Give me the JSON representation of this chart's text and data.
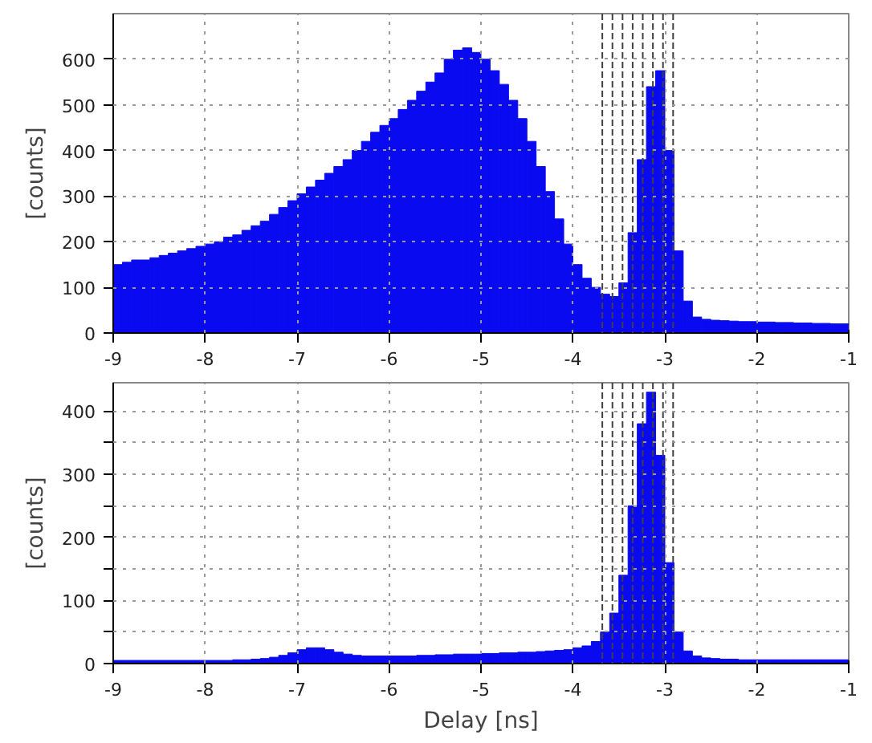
{
  "chart_data": [
    {
      "type": "histogram",
      "ylabel": "[counts]",
      "color": "#0a0af0",
      "grid": true,
      "bins": [
        -9.0,
        -8.9,
        -8.8,
        -8.7,
        -8.6,
        -8.5,
        -8.4,
        -8.3,
        -8.2,
        -8.1,
        -8.0,
        -7.9,
        -7.8,
        -7.7,
        -7.6,
        -7.5,
        -7.4,
        -7.3,
        -7.2,
        -7.1,
        -7.0,
        -6.9,
        -6.8,
        -6.7,
        -6.6,
        -6.5,
        -6.4,
        -6.3,
        -6.2,
        -6.1,
        -6.0,
        -5.9,
        -5.8,
        -5.7,
        -5.6,
        -5.5,
        -5.4,
        -5.3,
        -5.2,
        -5.1,
        -5.0,
        -4.9,
        -4.8,
        -4.7,
        -4.6,
        -4.5,
        -4.4,
        -4.3,
        -4.2,
        -4.1,
        -4.0,
        -3.9,
        -3.8,
        -3.7,
        -3.6,
        -3.5,
        -3.4,
        -3.3,
        -3.2,
        -3.1,
        -3.0,
        -2.9,
        -2.8,
        -2.7,
        -2.6,
        -2.5,
        -2.4,
        -2.3,
        -2.2,
        -2.1,
        -2.0,
        -1.9,
        -1.8,
        -1.7,
        -1.6,
        -1.5,
        -1.4,
        -1.3,
        -1.2,
        -1.1,
        -1.0
      ],
      "values": [
        150,
        155,
        160,
        160,
        165,
        170,
        175,
        180,
        185,
        190,
        195,
        200,
        210,
        215,
        225,
        235,
        245,
        260,
        275,
        290,
        305,
        320,
        335,
        350,
        365,
        380,
        400,
        420,
        440,
        455,
        470,
        490,
        510,
        530,
        550,
        570,
        600,
        620,
        625,
        615,
        600,
        575,
        545,
        510,
        470,
        420,
        365,
        310,
        250,
        195,
        150,
        120,
        100,
        85,
        80,
        110,
        220,
        380,
        540,
        575,
        400,
        180,
        70,
        35,
        30,
        28,
        27,
        26,
        25,
        25,
        24,
        24,
        23,
        23,
        22,
        22,
        21,
        21,
        20,
        20
      ],
      "xlim": [
        -9,
        -1
      ],
      "xticks": [
        -9,
        -8,
        -7,
        -6,
        -5,
        -4,
        -3,
        -2,
        -1
      ],
      "ylim": [
        0,
        700
      ],
      "yticks": [
        0,
        100,
        200,
        300,
        400,
        500,
        600
      ],
      "ref_lines": [
        {
          "axis": "x",
          "value": -3.68,
          "color": "#404040",
          "line_style": "dashed"
        },
        {
          "axis": "x",
          "value": -3.57,
          "color": "#404040",
          "line_style": "dashed"
        },
        {
          "axis": "x",
          "value": -3.46,
          "color": "#404040",
          "line_style": "dashed"
        },
        {
          "axis": "x",
          "value": -3.35,
          "color": "#404040",
          "line_style": "dashed"
        },
        {
          "axis": "x",
          "value": -3.24,
          "color": "#404040",
          "line_style": "dashed"
        },
        {
          "axis": "x",
          "value": -3.13,
          "color": "#404040",
          "line_style": "dashed"
        },
        {
          "axis": "x",
          "value": -3.02,
          "color": "#404040",
          "line_style": "dashed"
        },
        {
          "axis": "x",
          "value": -2.91,
          "color": "#404040",
          "line_style": "dashed"
        }
      ]
    },
    {
      "type": "histogram",
      "ylabel": "[counts]",
      "xlabel": "Delay [ns]",
      "color": "#0a0af0",
      "grid": true,
      "bins": [
        -9.0,
        -8.9,
        -8.8,
        -8.7,
        -8.6,
        -8.5,
        -8.4,
        -8.3,
        -8.2,
        -8.1,
        -8.0,
        -7.9,
        -7.8,
        -7.7,
        -7.6,
        -7.5,
        -7.4,
        -7.3,
        -7.2,
        -7.1,
        -7.0,
        -6.9,
        -6.8,
        -6.7,
        -6.6,
        -6.5,
        -6.4,
        -6.3,
        -6.2,
        -6.1,
        -6.0,
        -5.9,
        -5.8,
        -5.7,
        -5.6,
        -5.5,
        -5.4,
        -5.3,
        -5.2,
        -5.1,
        -5.0,
        -4.9,
        -4.8,
        -4.7,
        -4.6,
        -4.5,
        -4.4,
        -4.3,
        -4.2,
        -4.1,
        -4.0,
        -3.9,
        -3.8,
        -3.7,
        -3.6,
        -3.5,
        -3.4,
        -3.3,
        -3.2,
        -3.1,
        -3.0,
        -2.9,
        -2.8,
        -2.7,
        -2.6,
        -2.5,
        -2.4,
        -2.3,
        -2.2,
        -2.1,
        -2.0,
        -1.9,
        -1.8,
        -1.7,
        -1.6,
        -1.5,
        -1.4,
        -1.3,
        -1.2,
        -1.1,
        -1.0
      ],
      "values": [
        5,
        5,
        5,
        5,
        5,
        5,
        5,
        5,
        5,
        5,
        5,
        5,
        5,
        6,
        6,
        7,
        8,
        10,
        13,
        17,
        22,
        25,
        25,
        22,
        18,
        15,
        13,
        12,
        12,
        12,
        12,
        12,
        12,
        13,
        13,
        14,
        14,
        15,
        15,
        15,
        16,
        16,
        17,
        17,
        18,
        18,
        19,
        20,
        21,
        22,
        25,
        28,
        35,
        50,
        80,
        140,
        250,
        380,
        430,
        330,
        160,
        50,
        20,
        12,
        9,
        8,
        7,
        7,
        6,
        6,
        6,
        6,
        6,
        6,
        6,
        6,
        6,
        6,
        6,
        6
      ],
      "xlim": [
        -9,
        -1
      ],
      "xticks": [
        -9,
        -8,
        -7,
        -6,
        -5,
        -4,
        -3,
        -2,
        -1
      ],
      "ylim": [
        0,
        445
      ],
      "yticks": [
        0,
        {
          "value": 50,
          "label": null
        },
        100,
        {
          "value": 150,
          "label": null
        },
        200,
        {
          "value": 250,
          "label": null
        },
        300,
        {
          "value": 350,
          "label": null
        },
        400
      ],
      "ref_lines": [
        {
          "axis": "x",
          "value": -3.68,
          "color": "#404040",
          "line_style": "dashed"
        },
        {
          "axis": "x",
          "value": -3.57,
          "color": "#404040",
          "line_style": "dashed"
        },
        {
          "axis": "x",
          "value": -3.46,
          "color": "#404040",
          "line_style": "dashed"
        },
        {
          "axis": "x",
          "value": -3.35,
          "color": "#404040",
          "line_style": "dashed"
        },
        {
          "axis": "x",
          "value": -3.24,
          "color": "#404040",
          "line_style": "dashed"
        },
        {
          "axis": "x",
          "value": -3.13,
          "color": "#404040",
          "line_style": "dashed"
        },
        {
          "axis": "x",
          "value": -3.02,
          "color": "#404040",
          "line_style": "dashed"
        },
        {
          "axis": "x",
          "value": -2.91,
          "color": "#404040",
          "line_style": "dashed"
        }
      ]
    }
  ]
}
